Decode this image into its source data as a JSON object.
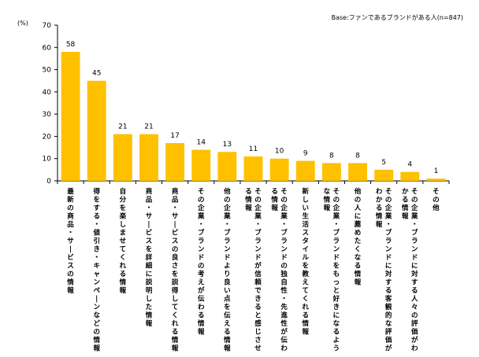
{
  "chart_data": {
    "type": "bar",
    "title": "",
    "unit_label": "(%)",
    "base_note": "Base:ファンであるブランドがある人(n=847)",
    "xlabel": "",
    "ylabel": "",
    "ylim": [
      0,
      70
    ],
    "yticks": [
      0,
      10,
      20,
      30,
      40,
      50,
      60,
      70
    ],
    "grid": false,
    "bar_color": "#FFC000",
    "categories": [
      "最新の商品・サービスの情報",
      "得をする・値引き・キャンペーンなどの情報",
      "自分を楽しませてくれる情報",
      "商品・サービスを詳細に説明した情報",
      "商品・サービスの良さを説得してくれる情報",
      "その企業・ブランドの考えが伝わる情報",
      "他の企業・ブランドより良い点を伝える情報",
      "その企業・ブランドが信頼できると感じさせる情報",
      "その企業・ブランドの独自性・先進性が伝わる情報",
      "新しい生活スタイルを教えてくれる情報",
      "その企業・ブランドをもっと好きになるような情報",
      "他の人に薦めたくなる情報",
      "その企業・ブランドに対する客観的な評価がわかる情報",
      "その企業・ブランドに対する人々の評価がわかる情報",
      "その他"
    ],
    "values": [
      58,
      45,
      21,
      21,
      17,
      14,
      13,
      11,
      10,
      9,
      8,
      8,
      5,
      4,
      1
    ]
  }
}
